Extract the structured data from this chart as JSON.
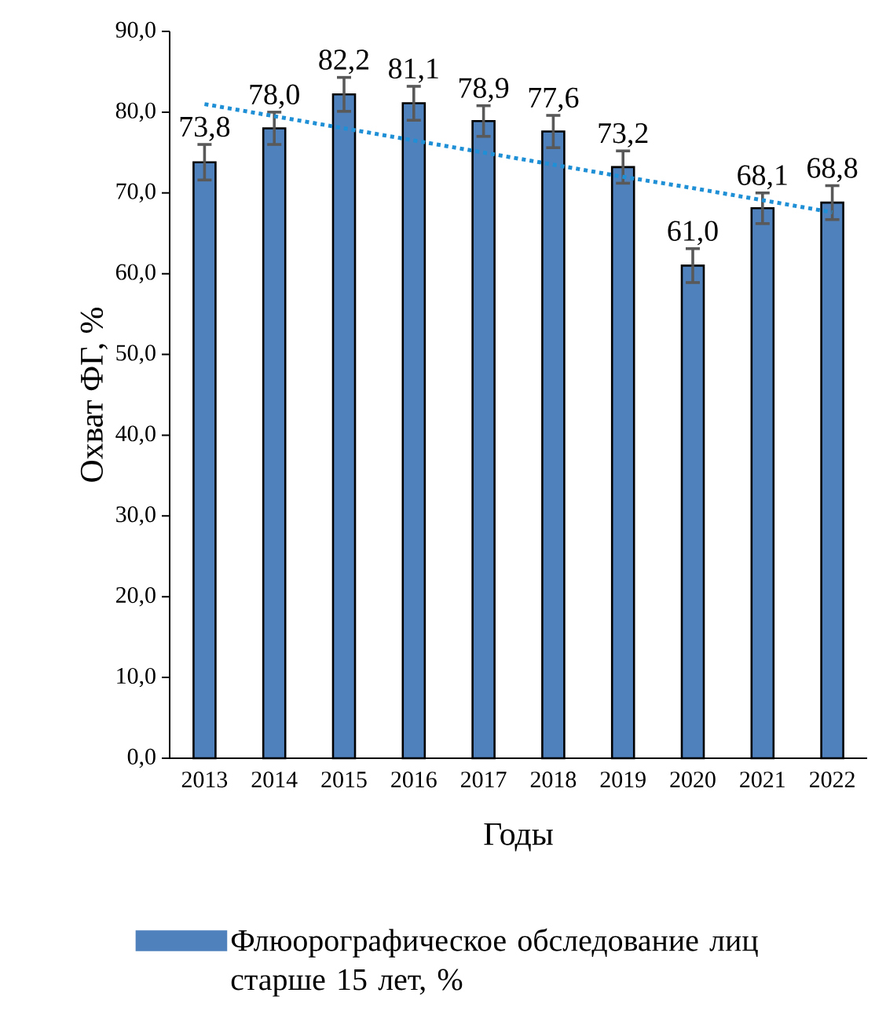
{
  "chart_data": {
    "type": "bar",
    "xlabel": "Годы",
    "ylabel": "Охват ФГ, %",
    "categories": [
      "2013",
      "2014",
      "2015",
      "2016",
      "2017",
      "2018",
      "2019",
      "2020",
      "2021",
      "2022"
    ],
    "series": [
      {
        "name": "Флюорографическое обследование лиц старше 15 лет, %",
        "color": "#4f81bd",
        "values": [
          73.8,
          78.0,
          82.2,
          81.1,
          78.9,
          77.6,
          73.2,
          61.0,
          68.1,
          68.8
        ],
        "errors": [
          2.2,
          2.0,
          2.1,
          2.1,
          1.9,
          2.0,
          2.0,
          2.1,
          1.9,
          2.1
        ],
        "value_labels": [
          "73,8",
          "78,0",
          "82,2",
          "81,1",
          "78,9",
          "77,6",
          "73,2",
          "61,0",
          "68,1",
          "68,8"
        ]
      },
      {
        "type": "line",
        "color": "#1f8fd6",
        "line_style": "dotted",
        "values": [
          81.0,
          79.5,
          78.0,
          76.5,
          75.0,
          73.5,
          72.0,
          70.6,
          69.1,
          67.6
        ]
      }
    ],
    "ylim": [
      0,
      90
    ],
    "yticks": [
      {
        "value": 0,
        "label": "0,0"
      },
      {
        "value": 10,
        "label": "10,0"
      },
      {
        "value": 20,
        "label": "20,0"
      },
      {
        "value": 30,
        "label": "30,0"
      },
      {
        "value": 40,
        "label": "40,0"
      },
      {
        "value": 50,
        "label": "50,0"
      },
      {
        "value": 60,
        "label": "60,0"
      },
      {
        "value": 70,
        "label": "70,0"
      },
      {
        "value": 80,
        "label": "80,0"
      },
      {
        "value": 90,
        "label": "90,0"
      }
    ],
    "legend": "bottom"
  }
}
